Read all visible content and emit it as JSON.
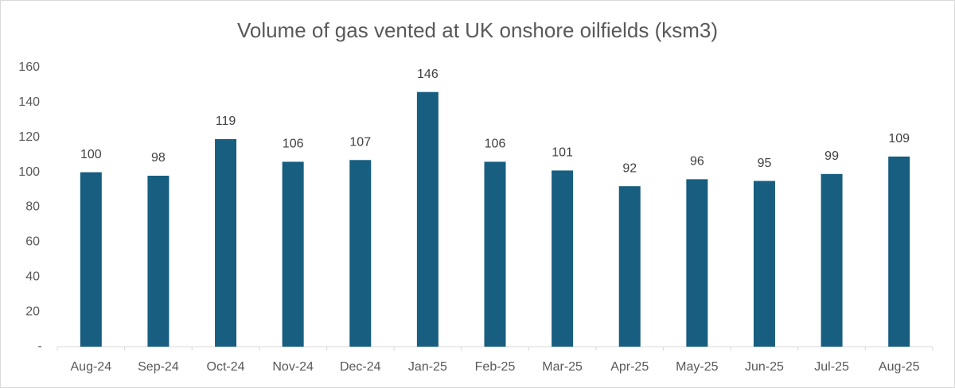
{
  "chart_data": {
    "type": "bar",
    "title": "Volume of gas vented at UK onshore oilfields (ksm3)",
    "categories": [
      "Aug-24",
      "Sep-24",
      "Oct-24",
      "Nov-24",
      "Dec-24",
      "Jan-25",
      "Feb-25",
      "Mar-25",
      "Apr-25",
      "May-25",
      "Jun-25",
      "Jul-25",
      "Aug-25"
    ],
    "values": [
      100,
      98,
      119,
      106,
      107,
      146,
      106,
      101,
      92,
      96,
      95,
      99,
      109
    ],
    "color": "#175e80",
    "ylim": [
      0,
      160
    ],
    "yticks": [
      {
        "value": 0,
        "label": "-"
      },
      20,
      40,
      60,
      80,
      100,
      120,
      140,
      160
    ],
    "grid": false
  }
}
